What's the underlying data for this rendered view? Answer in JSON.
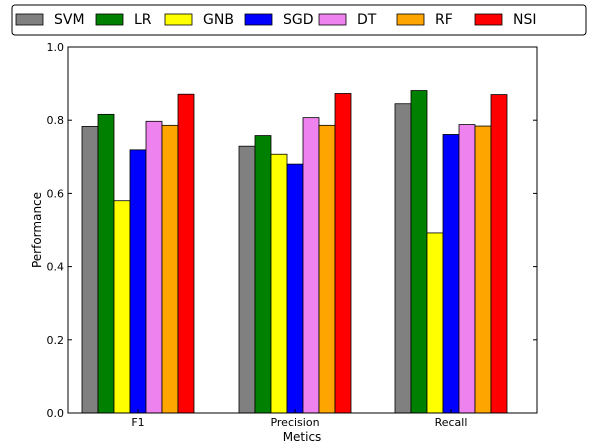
{
  "chart_data": {
    "type": "bar",
    "title": "",
    "xlabel": "Metics",
    "ylabel": "Performance",
    "ylim": [
      0.0,
      1.0
    ],
    "yticks": [
      0.0,
      0.2,
      0.4,
      0.6,
      0.8,
      1.0
    ],
    "ytick_labels": [
      "0.0",
      "0.2",
      "0.4",
      "0.6",
      "0.8",
      "1.0"
    ],
    "grid": false,
    "legend_position": "top",
    "categories": [
      "F1",
      "Precision",
      "Recall"
    ],
    "series": [
      {
        "name": "SVM",
        "color": "#808080",
        "values": [
          0.783,
          0.729,
          0.845
        ]
      },
      {
        "name": "LR",
        "color": "#008000",
        "values": [
          0.816,
          0.758,
          0.881
        ]
      },
      {
        "name": "GNB",
        "color": "#ffff00",
        "values": [
          0.58,
          0.707,
          0.492
        ]
      },
      {
        "name": "SGD",
        "color": "#0000ff",
        "values": [
          0.719,
          0.68,
          0.761
        ]
      },
      {
        "name": "DT",
        "color": "#ee82ee",
        "values": [
          0.797,
          0.807,
          0.788
        ]
      },
      {
        "name": "RF",
        "color": "#ffa500",
        "values": [
          0.786,
          0.786,
          0.784
        ]
      },
      {
        "name": "NSI",
        "color": "#ff0000",
        "values": [
          0.871,
          0.873,
          0.87
        ]
      }
    ]
  }
}
